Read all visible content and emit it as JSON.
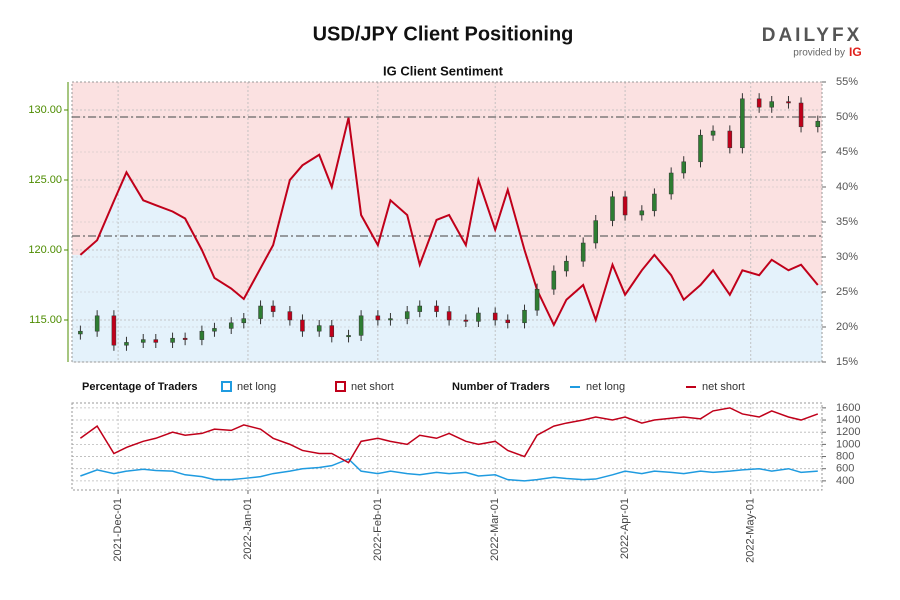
{
  "chart_data": [
    {
      "type": "candlestick",
      "title": "USD/JPY Client Positioning",
      "subtitle": "IG Client Sentiment",
      "logo": {
        "brand": "DAILYFX",
        "provided": "provided by",
        "ig": "IG"
      },
      "x": [
        "2021-11-22",
        "2021-11-26",
        "2021-11-30",
        "2021-12-03",
        "2021-12-07",
        "2021-12-10",
        "2021-12-14",
        "2021-12-17",
        "2021-12-21",
        "2021-12-24",
        "2021-12-28",
        "2021-12-31",
        "2022-01-04",
        "2022-01-07",
        "2022-01-11",
        "2022-01-14",
        "2022-01-18",
        "2022-01-21",
        "2022-01-25",
        "2022-01-28",
        "2022-02-01",
        "2022-02-04",
        "2022-02-08",
        "2022-02-11",
        "2022-02-15",
        "2022-02-18",
        "2022-02-22",
        "2022-02-25",
        "2022-03-01",
        "2022-03-04",
        "2022-03-08",
        "2022-03-11",
        "2022-03-15",
        "2022-03-18",
        "2022-03-22",
        "2022-03-25",
        "2022-03-29",
        "2022-04-01",
        "2022-04-05",
        "2022-04-08",
        "2022-04-12",
        "2022-04-15",
        "2022-04-19",
        "2022-04-22",
        "2022-04-26",
        "2022-04-29",
        "2022-05-03",
        "2022-05-06",
        "2022-05-10",
        "2022-05-13",
        "2022-05-17"
      ],
      "open": [
        114.0,
        114.2,
        115.3,
        113.2,
        113.4,
        113.6,
        113.4,
        113.7,
        113.6,
        114.2,
        114.4,
        114.8,
        115.1,
        116.0,
        115.6,
        115.0,
        114.2,
        114.6,
        113.8,
        113.9,
        115.3,
        115.0,
        115.1,
        115.6,
        116.0,
        115.6,
        115.0,
        114.9,
        115.5,
        115.0,
        114.8,
        115.7,
        117.2,
        118.5,
        119.2,
        120.5,
        122.1,
        123.8,
        122.5,
        122.8,
        124.0,
        125.5,
        126.3,
        128.2,
        128.5,
        127.3,
        130.8,
        130.2,
        130.6,
        130.5,
        128.8
      ],
      "high": [
        114.6,
        115.7,
        115.7,
        113.8,
        114.0,
        114.0,
        114.1,
        114.1,
        114.6,
        114.8,
        115.2,
        115.5,
        116.4,
        116.4,
        116.0,
        115.4,
        115.0,
        115.0,
        114.3,
        115.7,
        115.7,
        115.5,
        116.0,
        116.4,
        116.4,
        116.0,
        115.4,
        115.9,
        115.9,
        115.4,
        116.1,
        117.6,
        118.9,
        119.6,
        120.9,
        122.5,
        124.2,
        124.2,
        123.2,
        124.4,
        125.9,
        126.7,
        128.6,
        128.9,
        128.9,
        131.2,
        131.2,
        131.0,
        131.0,
        130.9,
        129.6
      ],
      "low": [
        113.6,
        113.8,
        112.8,
        112.8,
        113.0,
        113.0,
        113.0,
        113.2,
        113.2,
        113.8,
        114.0,
        114.4,
        114.7,
        115.2,
        114.6,
        113.8,
        113.8,
        113.4,
        113.4,
        113.5,
        114.6,
        114.6,
        114.7,
        115.2,
        115.2,
        114.6,
        114.5,
        114.5,
        114.6,
        114.4,
        114.4,
        115.3,
        116.8,
        118.1,
        118.8,
        120.1,
        121.7,
        122.1,
        122.1,
        122.4,
        123.6,
        125.1,
        125.9,
        127.8,
        126.9,
        126.9,
        129.8,
        129.8,
        130.1,
        128.4,
        128.4
      ],
      "close": [
        114.2,
        115.3,
        113.2,
        113.4,
        113.6,
        113.4,
        113.7,
        113.6,
        114.2,
        114.4,
        114.8,
        115.1,
        116.0,
        115.6,
        115.0,
        114.2,
        114.6,
        113.8,
        113.9,
        115.3,
        115.0,
        115.1,
        115.6,
        116.0,
        115.6,
        115.0,
        114.9,
        115.5,
        115.0,
        114.8,
        115.7,
        117.2,
        118.5,
        119.2,
        120.5,
        122.1,
        123.8,
        122.5,
        122.8,
        124.0,
        125.5,
        126.3,
        128.2,
        128.5,
        127.3,
        130.8,
        130.2,
        130.6,
        130.5,
        128.8,
        129.2
      ],
      "up_color": "#2e7d32",
      "down_color": "#c0001a",
      "series": [
        {
          "axis": "y2",
          "color": "#c0001a",
          "fill_above": "#fbe1e1",
          "fill_below": "#e4f2fb",
          "values": [
            30.3,
            32.4,
            38,
            42.1,
            38.1,
            37.4,
            36.5,
            35.5,
            31,
            27,
            25.5,
            24,
            28.4,
            31.7,
            41,
            43.1,
            44.6,
            40,
            49.9,
            36,
            31.7,
            38.1,
            36,
            28.9,
            35.3,
            36,
            31.7,
            41,
            33.9,
            39.6,
            31,
            25.3,
            20.3,
            23.9,
            26,
            21,
            28.9,
            24.6,
            28.1,
            30.3,
            27.4,
            23.9,
            26,
            28.1,
            24.6,
            28.1,
            27.4,
            29.6,
            28.1,
            28.9,
            26
          ]
        }
      ],
      "reference_lines": [
        129.5,
        121.0
      ],
      "xlim": [
        "2021-11-20",
        "2022-05-18"
      ],
      "xticks": [
        "2021-12-01",
        "2022-01-01",
        "2022-02-01",
        "2022-03-01",
        "2022-04-01",
        "2022-05-01"
      ],
      "ylim": [
        112,
        132
      ],
      "yticks": [
        {
          "value": 115,
          "label": "115.00"
        },
        {
          "value": 120,
          "label": "120.00"
        },
        {
          "value": 125,
          "label": "125.00"
        },
        {
          "value": 130,
          "label": "130.00"
        }
      ],
      "y2lim": [
        15,
        55
      ],
      "y2ticks": [
        {
          "value": 15,
          "label": "15%"
        },
        {
          "value": 20,
          "label": "20%"
        },
        {
          "value": 25,
          "label": "25%"
        },
        {
          "value": 30,
          "label": "30%"
        },
        {
          "value": 35,
          "label": "35%"
        },
        {
          "value": 40,
          "label": "40%"
        },
        {
          "value": 45,
          "label": "45%"
        },
        {
          "value": 50,
          "label": "50%"
        },
        {
          "value": 55,
          "label": "55%"
        }
      ],
      "legend_title": "Percentage of Traders",
      "legend_items": [
        {
          "name": "net long",
          "color": "#1f9be0"
        },
        {
          "name": "net short",
          "color": "#c0001a"
        }
      ],
      "grid": true
    },
    {
      "type": "line",
      "x": [
        "2021-11-22",
        "2021-11-26",
        "2021-11-30",
        "2021-12-03",
        "2021-12-07",
        "2021-12-10",
        "2021-12-14",
        "2021-12-17",
        "2021-12-21",
        "2021-12-24",
        "2021-12-28",
        "2021-12-31",
        "2022-01-04",
        "2022-01-07",
        "2022-01-11",
        "2022-01-14",
        "2022-01-18",
        "2022-01-21",
        "2022-01-25",
        "2022-01-28",
        "2022-02-01",
        "2022-02-04",
        "2022-02-08",
        "2022-02-11",
        "2022-02-15",
        "2022-02-18",
        "2022-02-22",
        "2022-02-25",
        "2022-03-01",
        "2022-03-04",
        "2022-03-08",
        "2022-03-11",
        "2022-03-15",
        "2022-03-18",
        "2022-03-22",
        "2022-03-25",
        "2022-03-29",
        "2022-04-01",
        "2022-04-05",
        "2022-04-08",
        "2022-04-12",
        "2022-04-15",
        "2022-04-19",
        "2022-04-22",
        "2022-04-26",
        "2022-04-29",
        "2022-05-03",
        "2022-05-06",
        "2022-05-10",
        "2022-05-13",
        "2022-05-17"
      ],
      "legend_title": "Number of Traders",
      "series": [
        {
          "name": "net long",
          "color": "#1f9be0",
          "values": [
            480,
            580,
            520,
            560,
            590,
            570,
            560,
            500,
            470,
            420,
            420,
            440,
            470,
            520,
            560,
            600,
            620,
            650,
            760,
            560,
            520,
            560,
            520,
            500,
            540,
            520,
            540,
            480,
            500,
            420,
            400,
            420,
            460,
            440,
            420,
            430,
            500,
            560,
            520,
            560,
            540,
            520,
            560,
            540,
            560,
            580,
            600,
            560,
            600,
            540,
            560
          ]
        },
        {
          "name": "net short",
          "color": "#c0001a",
          "values": [
            1100,
            1300,
            850,
            950,
            1050,
            1100,
            1200,
            1150,
            1180,
            1250,
            1230,
            1320,
            1250,
            1100,
            1000,
            900,
            850,
            850,
            700,
            1050,
            1100,
            1050,
            1000,
            1150,
            1100,
            1180,
            1050,
            1000,
            1050,
            900,
            800,
            1150,
            1300,
            1350,
            1400,
            1450,
            1400,
            1450,
            1350,
            1400,
            1430,
            1450,
            1420,
            1550,
            1600,
            1500,
            1450,
            1550,
            1450,
            1400,
            1500
          ]
        }
      ],
      "xlim": [
        "2021-11-20",
        "2022-05-18"
      ],
      "xticks": [
        {
          "value": "2021-12-01",
          "label": "2021-Dec-01"
        },
        {
          "value": "2022-01-01",
          "label": "2022-Jan-01"
        },
        {
          "value": "2022-02-01",
          "label": "2022-Feb-01"
        },
        {
          "value": "2022-03-01",
          "label": "2022-Mar-01"
        },
        {
          "value": "2022-04-01",
          "label": "2022-Apr-01"
        },
        {
          "value": "2022-05-01",
          "label": "2022-May-01"
        }
      ],
      "ylim": [
        250,
        1680
      ],
      "yticks": [
        400,
        600,
        800,
        1000,
        1200,
        1400,
        1600
      ],
      "grid": true
    }
  ]
}
